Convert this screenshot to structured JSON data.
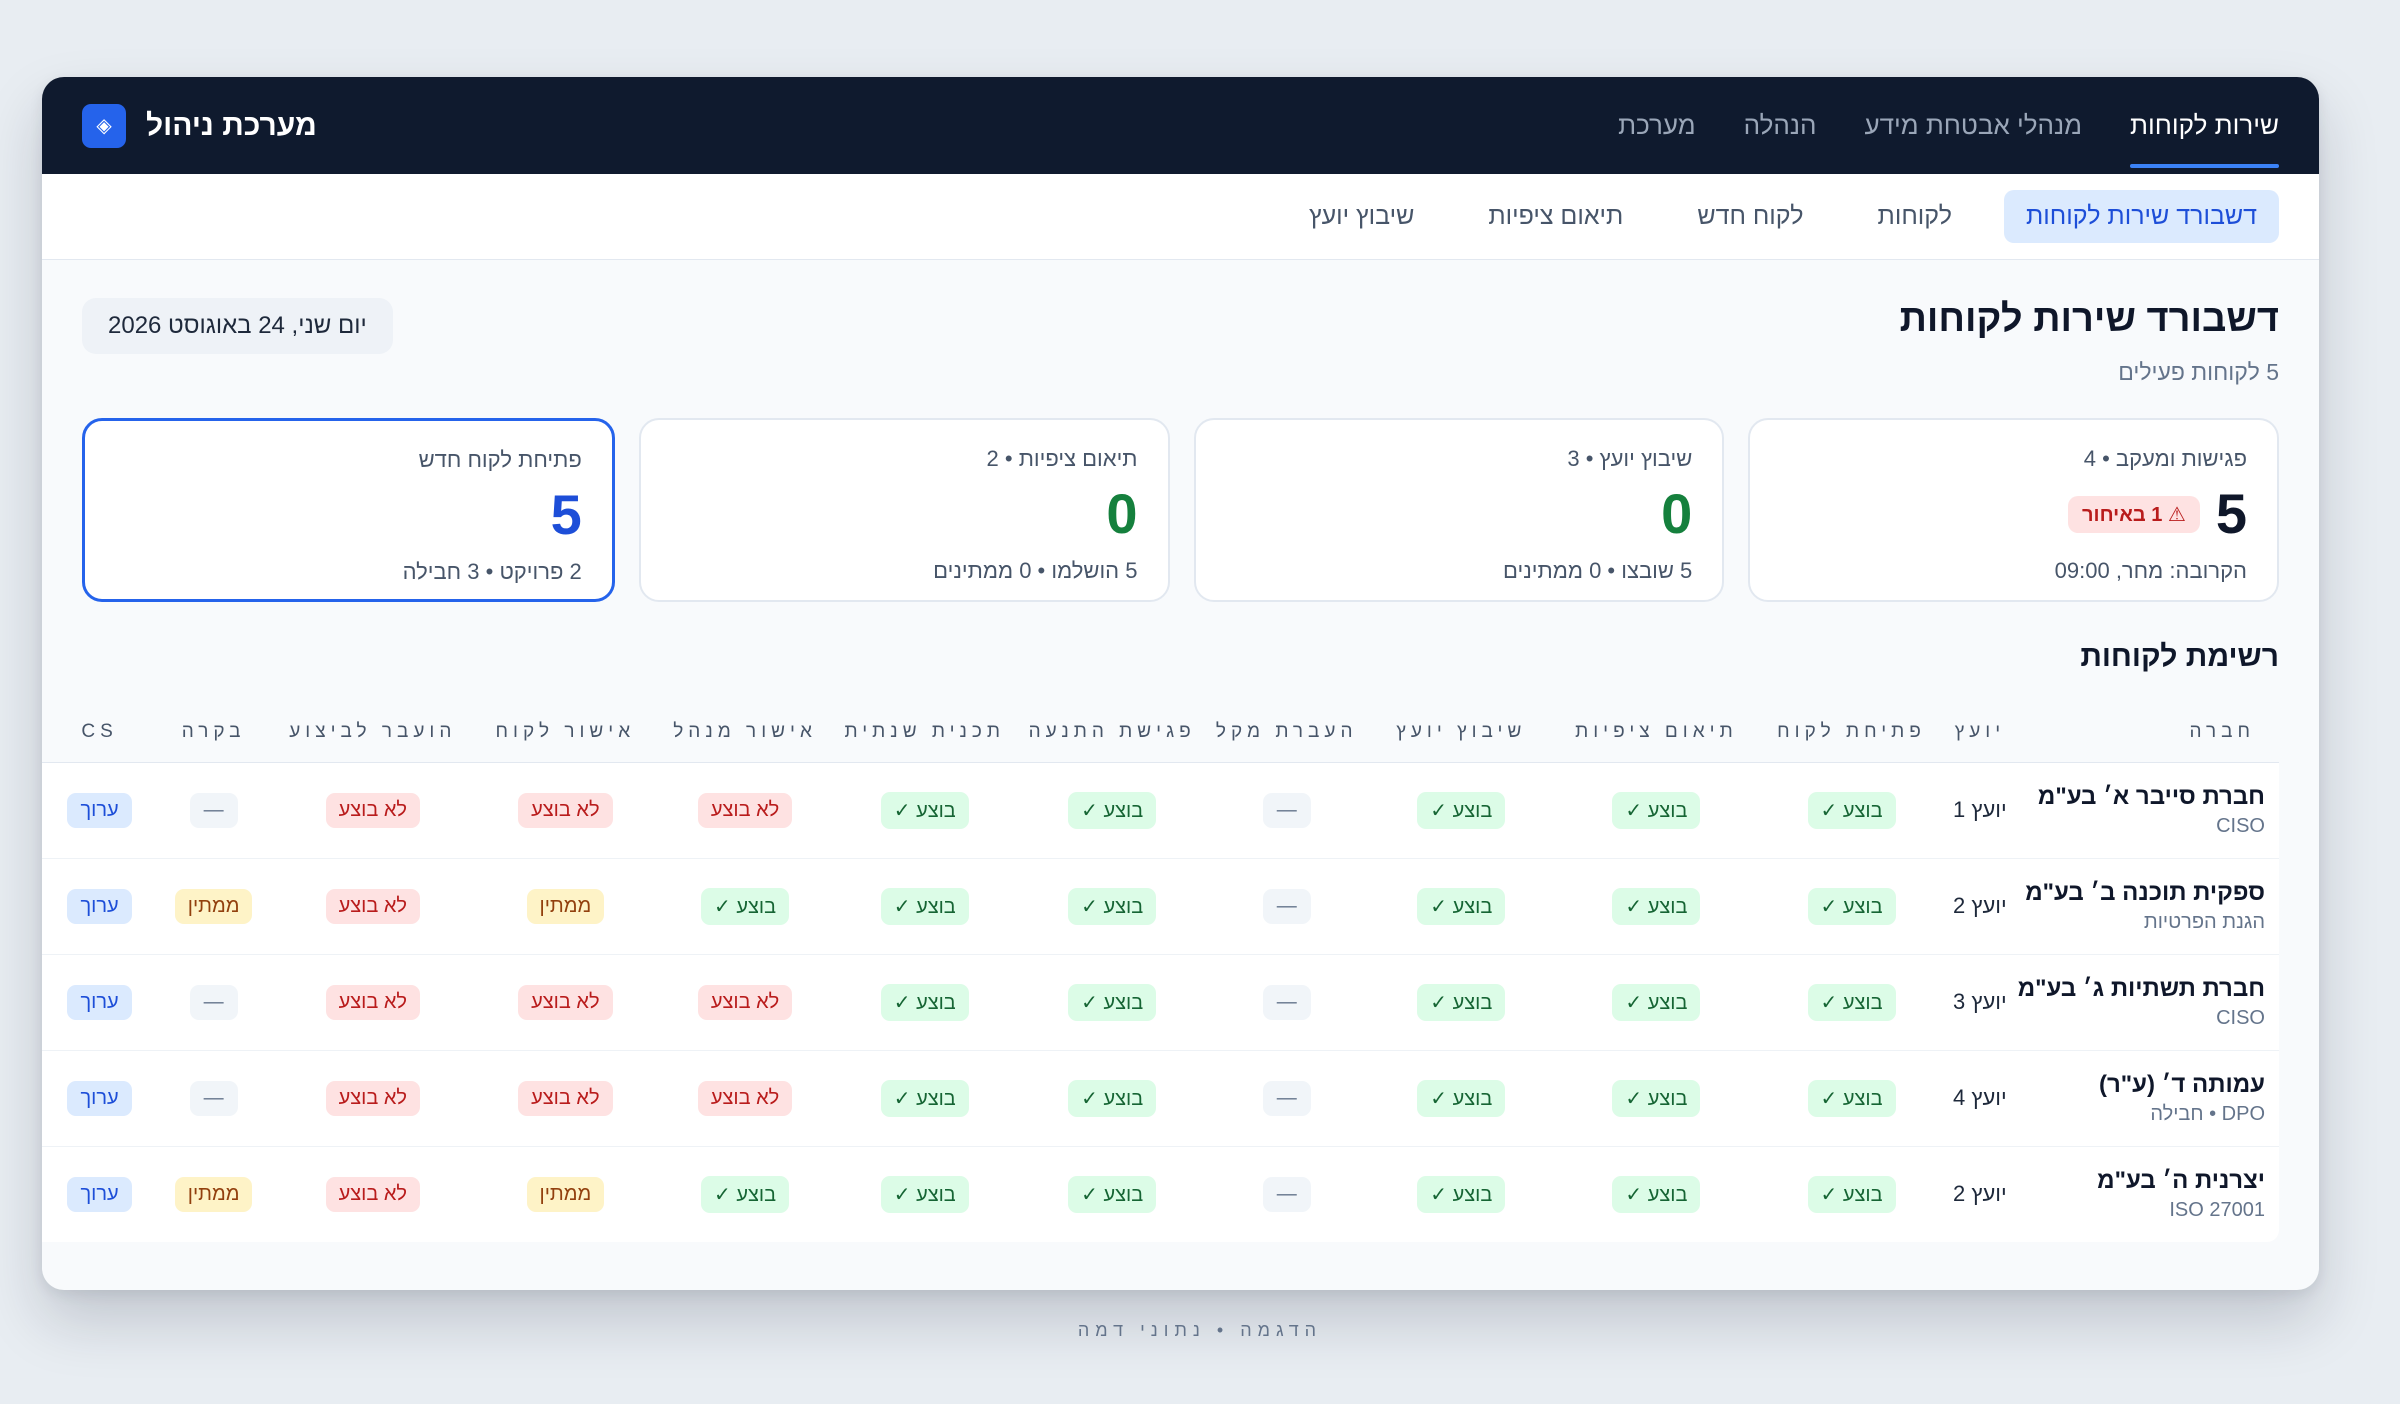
{
  "brand": {
    "title": "מערכת ניהול",
    "logo_icon": "diamond-icon"
  },
  "topnav": [
    {
      "label": "שירות לקוחות",
      "active": true
    },
    {
      "label": "מנהלי אבטחת מידע",
      "active": false
    },
    {
      "label": "הנהלה",
      "active": false
    },
    {
      "label": "מערכת",
      "active": false
    }
  ],
  "subnav": [
    {
      "label": "דשבורד שירות לקוחות",
      "active": true
    },
    {
      "label": "לקוחות",
      "active": false
    },
    {
      "label": "לקוח חדש",
      "active": false
    },
    {
      "label": "תיאום ציפיות",
      "active": false
    },
    {
      "label": "שיבוץ יועץ",
      "active": false
    }
  ],
  "header": {
    "title": "דשבורד שירות לקוחות",
    "subtitle": "5 לקוחות פעילים",
    "date": "יום שני, 24 באוגוסט 2026"
  },
  "cards": [
    {
      "label": "פגישות ומעקב • 4",
      "value": "5",
      "badge": "⚠ 1 באיחור",
      "foot": "הקרובה: מחר, 09:00",
      "tone": "dark"
    },
    {
      "label": "שיבוץ יועץ • 3",
      "value": "0",
      "foot": "5 שובצו • 0 ממתינים",
      "tone": "green"
    },
    {
      "label": "תיאום ציפיות • 2",
      "value": "0",
      "foot": "5 הושלמו • 0 ממתינים",
      "tone": "green"
    },
    {
      "label": "פתיחת לקוח חדש",
      "value": "5",
      "foot": "2 פרויקט • 3 חבילה",
      "tone": "blue"
    }
  ],
  "table": {
    "title": "רשימת לקוחות",
    "columns": [
      "חברה",
      "יועץ",
      "פתיחת לקוח",
      "תיאום ציפיות",
      "שיבוץ יועץ",
      "העברת מקל",
      "פגישת התנעה",
      "תכנית שנתית",
      "אישור מנהל",
      "אישור לקוח",
      "הועבר לביצוע",
      "בקרה",
      "CS"
    ],
    "rows": [
      {
        "company": "חברת סייבר א׳ בע\"מ",
        "sub": "CISO",
        "advisor": "יועץ 1",
        "cells": [
          "בוצע ✓",
          "בוצע ✓",
          "בוצע ✓",
          "—",
          "בוצע ✓",
          "בוצע ✓",
          "לא בוצע",
          "לא בוצע",
          "לא בוצע",
          "—",
          "ערוך"
        ]
      },
      {
        "company": "ספקית תוכנה ב׳ בע\"מ",
        "sub": "הגנת הפרטיות",
        "advisor": "יועץ 2",
        "cells": [
          "בוצע ✓",
          "בוצע ✓",
          "בוצע ✓",
          "—",
          "בוצע ✓",
          "בוצע ✓",
          "בוצע ✓",
          "ממתין",
          "לא בוצע",
          "ממתין",
          "ערוך"
        ]
      },
      {
        "company": "חברת תשתיות ג׳ בע\"מ",
        "sub": "CISO",
        "advisor": "יועץ 3",
        "cells": [
          "בוצע ✓",
          "בוצע ✓",
          "בוצע ✓",
          "—",
          "בוצע ✓",
          "בוצע ✓",
          "לא בוצע",
          "לא בוצע",
          "לא בוצע",
          "—",
          "ערוך"
        ]
      },
      {
        "company": "עמותה ד׳ (ע\"ר)",
        "sub": "DPO • חבילה",
        "advisor": "יועץ 4",
        "cells": [
          "בוצע ✓",
          "בוצע ✓",
          "בוצע ✓",
          "—",
          "בוצע ✓",
          "בוצע ✓",
          "לא בוצע",
          "לא בוצע",
          "לא בוצע",
          "—",
          "ערוך"
        ]
      },
      {
        "company": "יצרנית ה׳ בע\"מ",
        "sub": "ISO 27001",
        "advisor": "יועץ 2",
        "cells": [
          "בוצע ✓",
          "בוצע ✓",
          "בוצע ✓",
          "—",
          "בוצע ✓",
          "בוצע ✓",
          "בוצע ✓",
          "ממתין",
          "לא בוצע",
          "ממתין",
          "ערוך"
        ]
      }
    ]
  },
  "footer": "הדגמה • נתוני דמה",
  "colors": {
    "topbar": "#0f1a2e",
    "accent": "#2563eb",
    "done": "#dcfce7",
    "not_done": "#fee2e2",
    "pending": "#fef3c7"
  }
}
